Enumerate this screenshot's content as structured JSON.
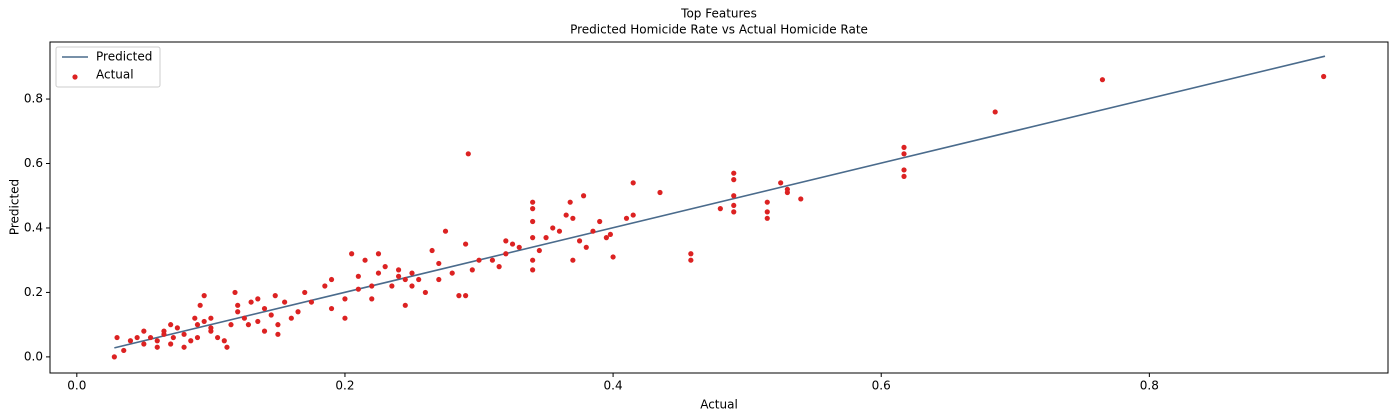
{
  "chart_data": {
    "type": "scatter",
    "title": "Top Features",
    "subtitle": "Predicted Homicide Rate vs Actual Homicide Rate",
    "x_label": "Actual",
    "y_label": "Predicted",
    "xlim": [
      -0.02,
      0.978
    ],
    "ylim": [
      -0.05,
      0.977
    ],
    "xticks": [
      {
        "value": 0,
        "label": "0.0"
      },
      0.2,
      0.4,
      0.6,
      0.8
    ],
    "yticks": [
      {
        "value": 0,
        "label": "0.0"
      },
      0.2,
      0.4,
      0.6,
      0.8
    ],
    "legend": "upper left",
    "series": [
      {
        "name": "Predicted",
        "type": "line",
        "color": "#4a6b8c",
        "x": [
          0.028,
          0.931
        ],
        "values": [
          0.028,
          0.933
        ]
      },
      {
        "name": "Actual",
        "type": "scatter",
        "color": "#dc2222",
        "x": [
          0.028,
          0.03,
          0.035,
          0.04,
          0.045,
          0.05,
          0.05,
          0.055,
          0.06,
          0.06,
          0.065,
          0.065,
          0.07,
          0.07,
          0.072,
          0.075,
          0.08,
          0.08,
          0.085,
          0.088,
          0.09,
          0.09,
          0.092,
          0.095,
          0.095,
          0.1,
          0.1,
          0.1,
          0.105,
          0.11,
          0.112,
          0.115,
          0.118,
          0.12,
          0.12,
          0.125,
          0.128,
          0.13,
          0.135,
          0.135,
          0.14,
          0.14,
          0.145,
          0.148,
          0.15,
          0.15,
          0.155,
          0.16,
          0.165,
          0.17,
          0.175,
          0.185,
          0.19,
          0.19,
          0.2,
          0.2,
          0.205,
          0.21,
          0.21,
          0.215,
          0.22,
          0.22,
          0.225,
          0.225,
          0.23,
          0.235,
          0.24,
          0.24,
          0.245,
          0.245,
          0.25,
          0.25,
          0.255,
          0.26,
          0.265,
          0.27,
          0.27,
          0.275,
          0.28,
          0.285,
          0.29,
          0.29,
          0.292,
          0.295,
          0.3,
          0.31,
          0.315,
          0.32,
          0.32,
          0.325,
          0.33,
          0.34,
          0.34,
          0.34,
          0.34,
          0.34,
          0.34,
          0.345,
          0.35,
          0.355,
          0.36,
          0.365,
          0.368,
          0.37,
          0.37,
          0.375,
          0.378,
          0.38,
          0.385,
          0.39,
          0.395,
          0.398,
          0.4,
          0.41,
          0.415,
          0.415,
          0.435,
          0.458,
          0.458,
          0.48,
          0.49,
          0.49,
          0.49,
          0.49,
          0.49,
          0.515,
          0.515,
          0.515,
          0.525,
          0.53,
          0.53,
          0.54,
          0.617,
          0.617,
          0.617,
          0.617,
          0.685,
          0.765,
          0.93
        ],
        "values": [
          0.0,
          0.06,
          0.02,
          0.05,
          0.06,
          0.08,
          0.04,
          0.06,
          0.03,
          0.05,
          0.07,
          0.08,
          0.1,
          0.04,
          0.06,
          0.09,
          0.07,
          0.03,
          0.05,
          0.12,
          0.06,
          0.1,
          0.16,
          0.19,
          0.11,
          0.12,
          0.08,
          0.09,
          0.06,
          0.05,
          0.03,
          0.1,
          0.2,
          0.14,
          0.16,
          0.12,
          0.1,
          0.17,
          0.18,
          0.11,
          0.15,
          0.08,
          0.13,
          0.19,
          0.07,
          0.1,
          0.17,
          0.12,
          0.14,
          0.2,
          0.17,
          0.22,
          0.24,
          0.15,
          0.12,
          0.18,
          0.32,
          0.21,
          0.25,
          0.3,
          0.22,
          0.18,
          0.26,
          0.32,
          0.28,
          0.22,
          0.25,
          0.27,
          0.24,
          0.16,
          0.22,
          0.26,
          0.24,
          0.2,
          0.33,
          0.29,
          0.24,
          0.39,
          0.26,
          0.19,
          0.35,
          0.19,
          0.63,
          0.27,
          0.3,
          0.3,
          0.28,
          0.36,
          0.32,
          0.35,
          0.34,
          0.48,
          0.46,
          0.42,
          0.37,
          0.3,
          0.27,
          0.33,
          0.37,
          0.4,
          0.39,
          0.44,
          0.48,
          0.43,
          0.3,
          0.36,
          0.5,
          0.34,
          0.39,
          0.42,
          0.37,
          0.38,
          0.31,
          0.43,
          0.54,
          0.44,
          0.51,
          0.32,
          0.3,
          0.46,
          0.57,
          0.55,
          0.5,
          0.45,
          0.47,
          0.48,
          0.45,
          0.43,
          0.54,
          0.52,
          0.51,
          0.49,
          0.65,
          0.63,
          0.58,
          0.56,
          0.76,
          0.86,
          0.87
        ]
      }
    ]
  }
}
